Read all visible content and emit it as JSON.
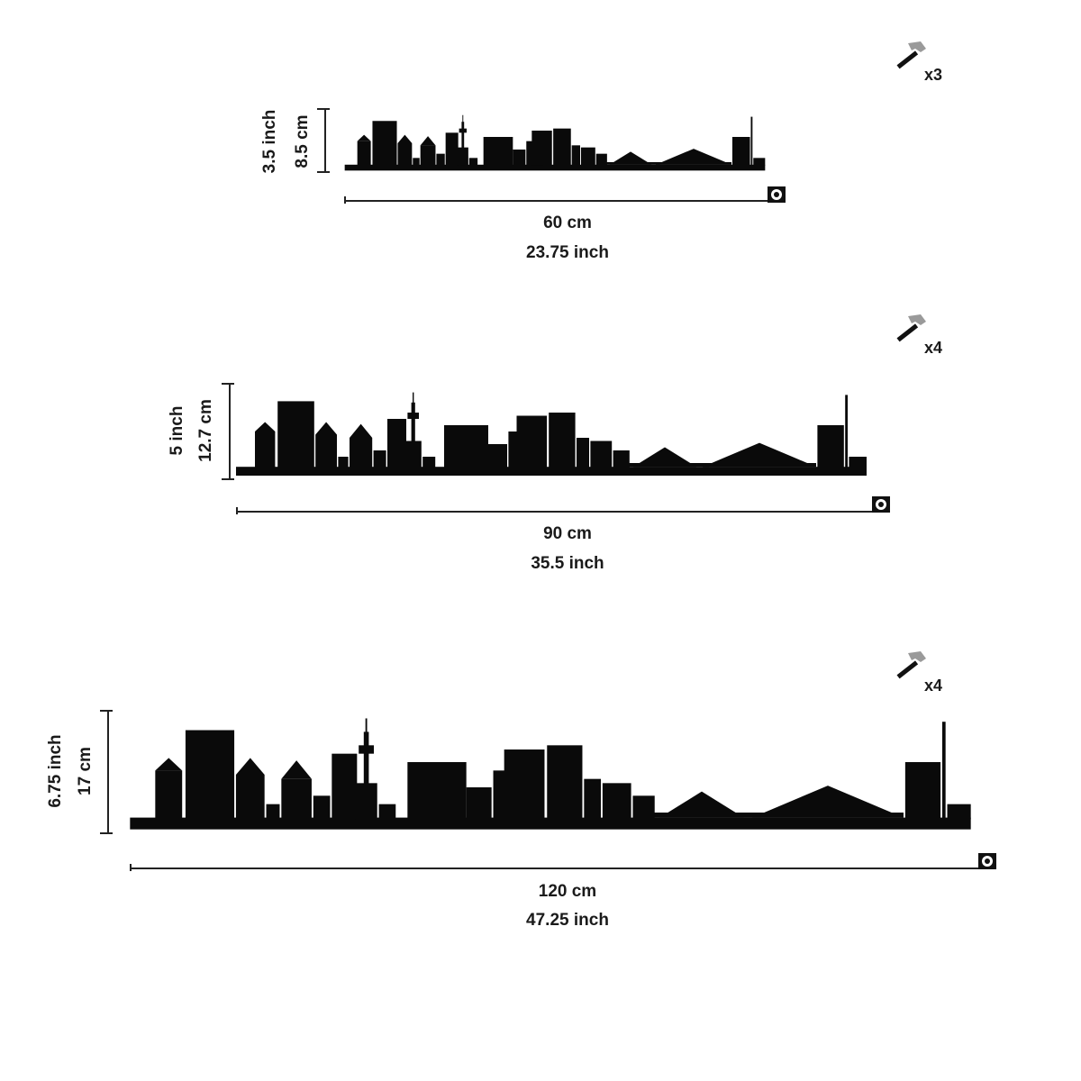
{
  "variants": [
    {
      "id": "small",
      "height_inch": "3.5 inch",
      "height_cm": "8.5 cm",
      "width_cm": "60 cm",
      "width_inch": "23.75 inch",
      "hardware_count": "x3",
      "hardware_icon": "hammer-icon"
    },
    {
      "id": "medium",
      "height_inch": "5 inch",
      "height_cm": "12.7 cm",
      "width_cm": "90 cm",
      "width_inch": "35.5 inch",
      "hardware_count": "x4",
      "hardware_icon": "hammer-icon"
    },
    {
      "id": "large",
      "height_inch": "6.75 inch",
      "height_cm": "17 cm",
      "width_cm": "120 cm",
      "width_inch": "47.25 inch",
      "hardware_count": "x4",
      "hardware_icon": "hammer-icon"
    }
  ],
  "colors": {
    "silhouette": "#0a0a0a",
    "text": "#1a1a1a",
    "hammer_head": "#9a9a9a"
  }
}
